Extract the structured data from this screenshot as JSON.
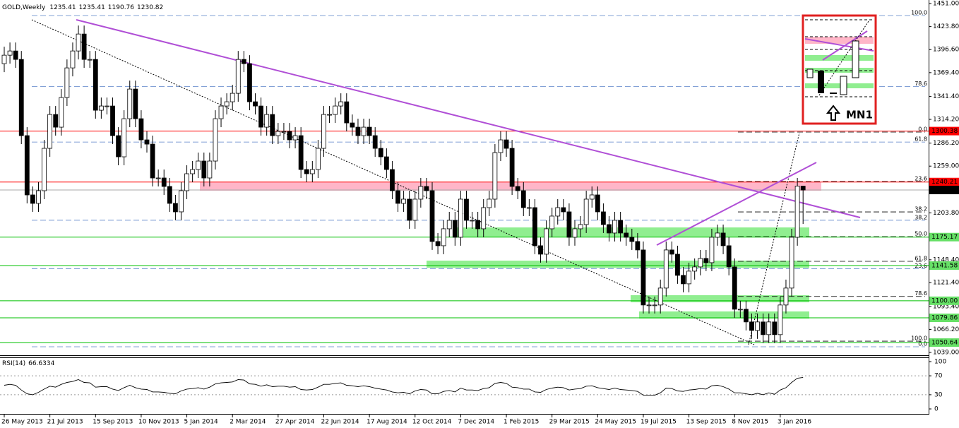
{
  "chart_data": {
    "type": "candlestick",
    "title": "GOLD,Weekly",
    "rsi_title": "RSI(14)",
    "inset_label": "MN1",
    "categories": [
      "26 May 2013",
      null,
      null,
      null,
      null,
      null,
      null,
      null,
      "21 Jul 2013",
      null,
      null,
      null,
      null,
      null,
      null,
      null,
      "15 Sep 2013",
      null,
      null,
      null,
      null,
      null,
      null,
      null,
      "10 Nov 2013",
      null,
      null,
      null,
      null,
      null,
      null,
      null,
      "5 Jan 2014",
      null,
      null,
      null,
      null,
      null,
      null,
      null,
      "2 Mar 2014",
      null,
      null,
      null,
      null,
      null,
      null,
      null,
      "27 Apr 2014",
      null,
      null,
      null,
      null,
      null,
      null,
      null,
      "22 Jun 2014",
      null,
      null,
      null,
      null,
      null,
      null,
      null,
      "17 Aug 2014",
      null,
      null,
      null,
      null,
      null,
      null,
      null,
      "12 Oct 2014",
      null,
      null,
      null,
      null,
      null,
      null,
      null,
      "7 Dec 2014",
      null,
      null,
      null,
      null,
      null,
      null,
      null,
      "1 Feb 2015",
      null,
      null,
      null,
      null,
      null,
      null,
      null,
      "29 Mar 2015",
      null,
      null,
      null,
      null,
      null,
      null,
      null,
      "24 May 2015",
      null,
      null,
      null,
      null,
      null,
      null,
      null,
      "19 Jul 2015",
      null,
      null,
      null,
      null,
      null,
      null,
      null,
      "13 Sep 2015",
      null,
      null,
      null,
      null,
      null,
      null,
      null,
      "8 Nov 2015",
      null,
      null,
      null,
      null,
      null,
      null,
      null,
      "3 Jan 2016",
      null,
      null,
      null,
      null
    ],
    "open": [
      1380,
      1390,
      1395,
      1385,
      1295,
      1225,
      1215,
      1230,
      1280,
      1320,
      1305,
      1340,
      1375,
      1395,
      1415,
      1385,
      1385,
      1325,
      1330,
      1330,
      1295,
      1270,
      1315,
      1350,
      1315,
      1290,
      1285,
      1245,
      1245,
      1235,
      1215,
      1205,
      1230,
      1250,
      1255,
      1265,
      1245,
      1265,
      1315,
      1330,
      1335,
      1345,
      1385,
      1380,
      1335,
      1330,
      1305,
      1320,
      1295,
      1300,
      1300,
      1290,
      1295,
      1255,
      1250,
      1255,
      1280,
      1320,
      1320,
      1330,
      1335,
      1310,
      1305,
      1295,
      1305,
      1295,
      1280,
      1270,
      1255,
      1230,
      1215,
      1220,
      1195,
      1220,
      1235,
      1230,
      1170,
      1165,
      1185,
      1195,
      1175,
      1220,
      1195,
      1195,
      1185,
      1210,
      1220,
      1275,
      1290,
      1280,
      1235,
      1230,
      1210,
      1210,
      1165,
      1155,
      1185,
      1200,
      1210,
      1205,
      1175,
      1185,
      1190,
      1220,
      1225,
      1205,
      1190,
      1180,
      1195,
      1180,
      1175,
      1170,
      1160,
      1095,
      1095,
      1095,
      1115,
      1160,
      1155,
      1130,
      1120,
      1135,
      1140,
      1150,
      1145,
      1175,
      1180,
      1165,
      1140,
      1090,
      1090,
      1075,
      1065,
      1075,
      1060,
      1075,
      1060,
      1095,
      1115,
      1175,
      1235.41
    ],
    "high": [
      1400,
      1405,
      1405,
      1395,
      1305,
      1235,
      1240,
      1290,
      1330,
      1330,
      1350,
      1385,
      1405,
      1425,
      1425,
      1395,
      1395,
      1340,
      1340,
      1340,
      1305,
      1325,
      1360,
      1360,
      1325,
      1300,
      1295,
      1255,
      1255,
      1245,
      1225,
      1240,
      1260,
      1265,
      1275,
      1275,
      1275,
      1325,
      1340,
      1345,
      1355,
      1395,
      1395,
      1390,
      1345,
      1340,
      1330,
      1330,
      1310,
      1310,
      1310,
      1305,
      1305,
      1265,
      1265,
      1290,
      1330,
      1330,
      1340,
      1345,
      1345,
      1320,
      1315,
      1315,
      1315,
      1305,
      1290,
      1280,
      1265,
      1240,
      1230,
      1230,
      1230,
      1245,
      1245,
      1240,
      1180,
      1195,
      1205,
      1205,
      1230,
      1230,
      1205,
      1205,
      1220,
      1230,
      1285,
      1300,
      1300,
      1290,
      1245,
      1240,
      1220,
      1220,
      1175,
      1195,
      1210,
      1220,
      1220,
      1215,
      1195,
      1200,
      1230,
      1235,
      1235,
      1215,
      1200,
      1205,
      1205,
      1190,
      1185,
      1180,
      1170,
      1105,
      1105,
      1125,
      1170,
      1170,
      1165,
      1140,
      1145,
      1150,
      1160,
      1160,
      1185,
      1190,
      1190,
      1175,
      1150,
      1100,
      1100,
      1085,
      1085,
      1085,
      1085,
      1085,
      1105,
      1125,
      1185,
      1245,
      1235.41
    ],
    "low": [
      1370,
      1380,
      1375,
      1285,
      1215,
      1205,
      1205,
      1220,
      1270,
      1295,
      1295,
      1330,
      1365,
      1385,
      1375,
      1375,
      1315,
      1315,
      1320,
      1285,
      1260,
      1260,
      1305,
      1305,
      1280,
      1275,
      1235,
      1235,
      1225,
      1205,
      1195,
      1195,
      1220,
      1240,
      1245,
      1235,
      1235,
      1255,
      1305,
      1320,
      1325,
      1335,
      1370,
      1325,
      1320,
      1295,
      1295,
      1285,
      1285,
      1290,
      1280,
      1280,
      1245,
      1240,
      1240,
      1245,
      1270,
      1310,
      1310,
      1320,
      1300,
      1295,
      1285,
      1285,
      1285,
      1270,
      1260,
      1245,
      1220,
      1205,
      1205,
      1185,
      1185,
      1210,
      1220,
      1160,
      1155,
      1155,
      1175,
      1165,
      1165,
      1185,
      1185,
      1175,
      1175,
      1200,
      1210,
      1265,
      1270,
      1225,
      1220,
      1200,
      1200,
      1155,
      1145,
      1145,
      1175,
      1190,
      1195,
      1165,
      1165,
      1175,
      1180,
      1210,
      1195,
      1180,
      1170,
      1170,
      1170,
      1165,
      1160,
      1150,
      1085,
      1085,
      1085,
      1085,
      1105,
      1145,
      1120,
      1110,
      1110,
      1125,
      1130,
      1135,
      1135,
      1165,
      1155,
      1130,
      1080,
      1080,
      1065,
      1055,
      1055,
      1050,
      1050,
      1050,
      1050,
      1085,
      1105,
      1165,
      1190.76
    ],
    "close": [
      1390,
      1395,
      1385,
      1295,
      1225,
      1215,
      1230,
      1280,
      1320,
      1305,
      1340,
      1375,
      1395,
      1415,
      1385,
      1385,
      1325,
      1330,
      1330,
      1295,
      1270,
      1315,
      1350,
      1315,
      1290,
      1285,
      1245,
      1245,
      1235,
      1215,
      1205,
      1230,
      1250,
      1255,
      1265,
      1245,
      1265,
      1315,
      1330,
      1335,
      1345,
      1385,
      1380,
      1335,
      1330,
      1305,
      1320,
      1295,
      1300,
      1300,
      1290,
      1295,
      1255,
      1250,
      1255,
      1280,
      1320,
      1320,
      1330,
      1335,
      1310,
      1305,
      1295,
      1305,
      1295,
      1280,
      1270,
      1255,
      1230,
      1215,
      1220,
      1195,
      1220,
      1235,
      1230,
      1170,
      1165,
      1185,
      1195,
      1175,
      1220,
      1195,
      1195,
      1185,
      1210,
      1220,
      1275,
      1290,
      1280,
      1235,
      1230,
      1210,
      1210,
      1165,
      1155,
      1185,
      1200,
      1210,
      1205,
      1175,
      1185,
      1190,
      1220,
      1225,
      1205,
      1190,
      1180,
      1195,
      1180,
      1175,
      1170,
      1160,
      1095,
      1095,
      1095,
      1115,
      1160,
      1155,
      1130,
      1120,
      1135,
      1140,
      1150,
      1145,
      1175,
      1180,
      1165,
      1140,
      1090,
      1090,
      1075,
      1065,
      1075,
      1060,
      1075,
      1060,
      1095,
      1115,
      1175,
      1235.41,
      1230.82
    ],
    "rsi": [
      50,
      52,
      50,
      40,
      32,
      30,
      35,
      42,
      48,
      46,
      52,
      56,
      58,
      62,
      56,
      55,
      46,
      47,
      47,
      42,
      39,
      45,
      50,
      45,
      42,
      41,
      36,
      36,
      35,
      33,
      32,
      38,
      42,
      43,
      45,
      42,
      46,
      53,
      55,
      56,
      57,
      62,
      61,
      53,
      52,
      48,
      51,
      47,
      48,
      48,
      46,
      47,
      41,
      40,
      41,
      46,
      52,
      52,
      54,
      55,
      50,
      49,
      47,
      49,
      47,
      44,
      42,
      40,
      36,
      34,
      35,
      32,
      38,
      41,
      40,
      32,
      32,
      37,
      39,
      36,
      44,
      40,
      40,
      39,
      43,
      45,
      54,
      56,
      54,
      46,
      45,
      42,
      42,
      36,
      35,
      41,
      44,
      46,
      45,
      40,
      42,
      43,
      48,
      49,
      45,
      43,
      41,
      44,
      41,
      40,
      39,
      37,
      29,
      29,
      29,
      34,
      44,
      43,
      38,
      37,
      40,
      41,
      43,
      42,
      49,
      50,
      47,
      42,
      34,
      34,
      32,
      30,
      33,
      30,
      34,
      31,
      40,
      45,
      56,
      65,
      66.6334
    ],
    "ylim": [
      1039,
      1451
    ],
    "yticks": [
      {
        "value": 1451,
        "label": "1451.00"
      },
      {
        "value": 1423.8,
        "label": "1423.80"
      },
      {
        "value": 1396.6,
        "label": "1396.60"
      },
      {
        "value": 1369.4,
        "label": "1369.40"
      },
      {
        "value": 1341.4,
        "label": "1341.40"
      },
      {
        "value": 1314.2,
        "label": "1314.20"
      },
      {
        "value": 1286.2,
        "label": "1286.20"
      },
      {
        "value": 1259,
        "label": "1259.00"
      },
      {
        "value": 1203.8,
        "label": "1203.80"
      },
      {
        "value": 1148.4,
        "label": "1148.40"
      },
      {
        "value": 1121.4,
        "label": "1121.40"
      },
      {
        "value": 1093.4,
        "label": "1093.40"
      },
      {
        "value": 1066.2,
        "label": "1066.20"
      },
      {
        "value": 1039,
        "label": "1039.00"
      }
    ],
    "rsi_ylim": [
      0,
      100
    ],
    "rsi_yticks": [
      100,
      70,
      30,
      0
    ],
    "rsi_levels": [
      70,
      30
    ],
    "levels": [
      {
        "price": 1300.38,
        "color": "#ff0000",
        "text_color": "#ffffff"
      },
      {
        "price": 1240.21,
        "color": "#ff0000",
        "text_color": "#ffffff"
      },
      {
        "price": {
          "value": 1175.17,
          "label": "1175.17"
        },
        "color": "#00c000",
        "text_color": "#000000"
      },
      {
        "price": 1141.58,
        "color": "#00c000",
        "text_color": "#000000"
      },
      {
        "price": {
          "value": 1100,
          "label": "1100.00"
        },
        "color": "#00c000",
        "text_color": "#000000"
      },
      {
        "price": 1079.86,
        "color": "#00c000",
        "text_color": "#000000"
      },
      {
        "price": 1050.64,
        "color": "#00c000",
        "text_color": "#000000"
      }
    ],
    "fib_long": {
      "color": "#5a82c8",
      "levels": [
        {
          "label": "100.0",
          "price": 1436.8
        },
        {
          "label": "78.6",
          "price": 1353.1
        },
        {
          "label": "61.8",
          "price": 1287.4
        },
        {
          "label": "38.2",
          "price": 1195.1
        },
        {
          "label": "23.6",
          "price": 1138
        },
        {
          "label": "0.0",
          "price": 1045.7
        }
      ]
    },
    "fib_short": {
      "color": "#000000",
      "levels": [
        {
          "label": "0.0",
          "price": 1299.2
        },
        {
          "label": "23.6",
          "price": 1240.9
        },
        {
          "label": "38.2",
          "price": 1204.9
        },
        {
          "label": "50.0",
          "price": 1175.75
        },
        {
          "label": "61.8",
          "price": 1146.6
        },
        {
          "label": "78.6",
          "price": 1105.1
        },
        {
          "label": "100.0",
          "price": 1052.3
        }
      ]
    },
    "zones": [
      {
        "top": 1240.21,
        "bottom": 1230,
        "color": "#ffb6c8"
      },
      {
        "top": 1186.6,
        "bottom": 1175.17,
        "color": "#90ee90"
      },
      {
        "top": 1147.4,
        "bottom": 1139,
        "color": "#90ee90"
      },
      {
        "top": 1106.6,
        "bottom": 1098.2,
        "color": "#90ee90"
      },
      {
        "top": 1087.4,
        "bottom": 1079,
        "color": "#90ee90"
      }
    ],
    "bull_color": "#ffffff",
    "bear_color": "#000000"
  }
}
